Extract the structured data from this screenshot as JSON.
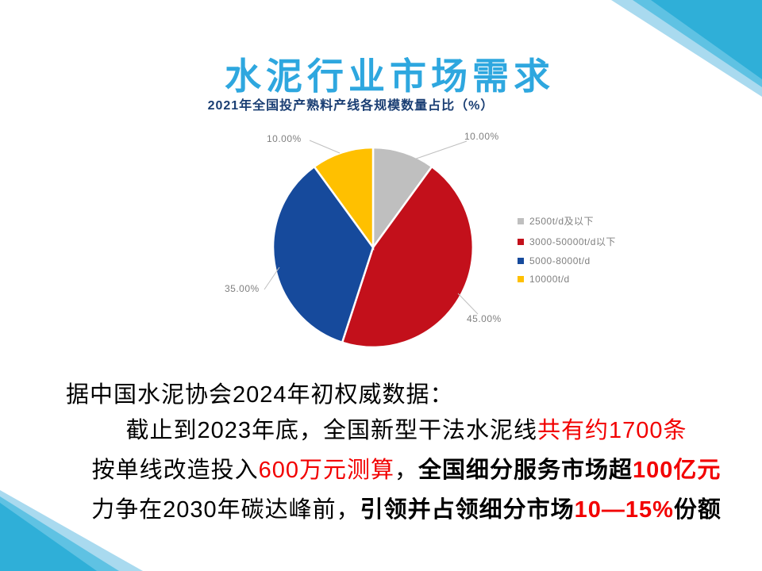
{
  "slide": {
    "title": "水泥行业市场需求"
  },
  "chart_data": {
    "type": "pie",
    "title": "2021年全国投产熟料产线各规模数量占比（%）",
    "categories": [
      "2500t/d及以下",
      "3000-50000t/d以下",
      "5000-8000t/d",
      "10000t/d"
    ],
    "values": [
      10,
      45,
      35,
      10
    ],
    "slices": [
      {
        "name": "2500t/d及以下",
        "value": 10,
        "label": "10.00%",
        "color": "#BFBFBF"
      },
      {
        "name": "3000-50000t/d以下",
        "value": 45,
        "label": "45.00%",
        "color": "#C3101B"
      },
      {
        "name": "5000-8000t/d",
        "value": 35,
        "label": "35.00%",
        "color": "#164A9C"
      },
      {
        "name": "10000t/d",
        "value": 10,
        "label": "10.00%",
        "color": "#FFC000"
      }
    ],
    "start_angle_deg": 0,
    "direction": "clockwise",
    "legend_position": "right",
    "data_label_format": "0.00%"
  },
  "body": {
    "lines": [
      {
        "segments": [
          {
            "text": "据中国水泥协会2024年初权威数据：",
            "color": "#000000",
            "bold": false
          }
        ]
      },
      {
        "segments": [
          {
            "text": "截止到2023年底，全国新型干法水泥线",
            "color": "#000000",
            "bold": false
          },
          {
            "text": "共有约1700条",
            "color": "#F20000",
            "bold": false
          }
        ]
      },
      {
        "segments": [
          {
            "text": "按单线改造投入",
            "color": "#000000",
            "bold": false
          },
          {
            "text": "600万元测算",
            "color": "#F20000",
            "bold": false
          },
          {
            "text": "，",
            "color": "#000000",
            "bold": false
          },
          {
            "text": "全国细分服务市场超",
            "color": "#000000",
            "bold": true
          },
          {
            "text": "100亿元",
            "color": "#F20000",
            "bold": true
          }
        ]
      },
      {
        "segments": [
          {
            "text": "力争在2030年碳达峰前，",
            "color": "#000000",
            "bold": false
          },
          {
            "text": "引领并占领细分市场",
            "color": "#000000",
            "bold": true
          },
          {
            "text": "10—15%",
            "color": "#F20000",
            "bold": true
          },
          {
            "text": "份额",
            "color": "#000000",
            "bold": true
          }
        ]
      }
    ]
  },
  "colors": {
    "title": "#2EA7DF",
    "chart_title": "#1A3E73",
    "highlight_red": "#F20000",
    "text_black": "#000000",
    "label_gray": "#7F7F7F",
    "legend_gray": "#808080",
    "leader_line": "#BFBFBF",
    "decor_light": "#A9DAEF",
    "decor_mid": "#5FC2E3",
    "decor_main": "#2FAFD8"
  }
}
